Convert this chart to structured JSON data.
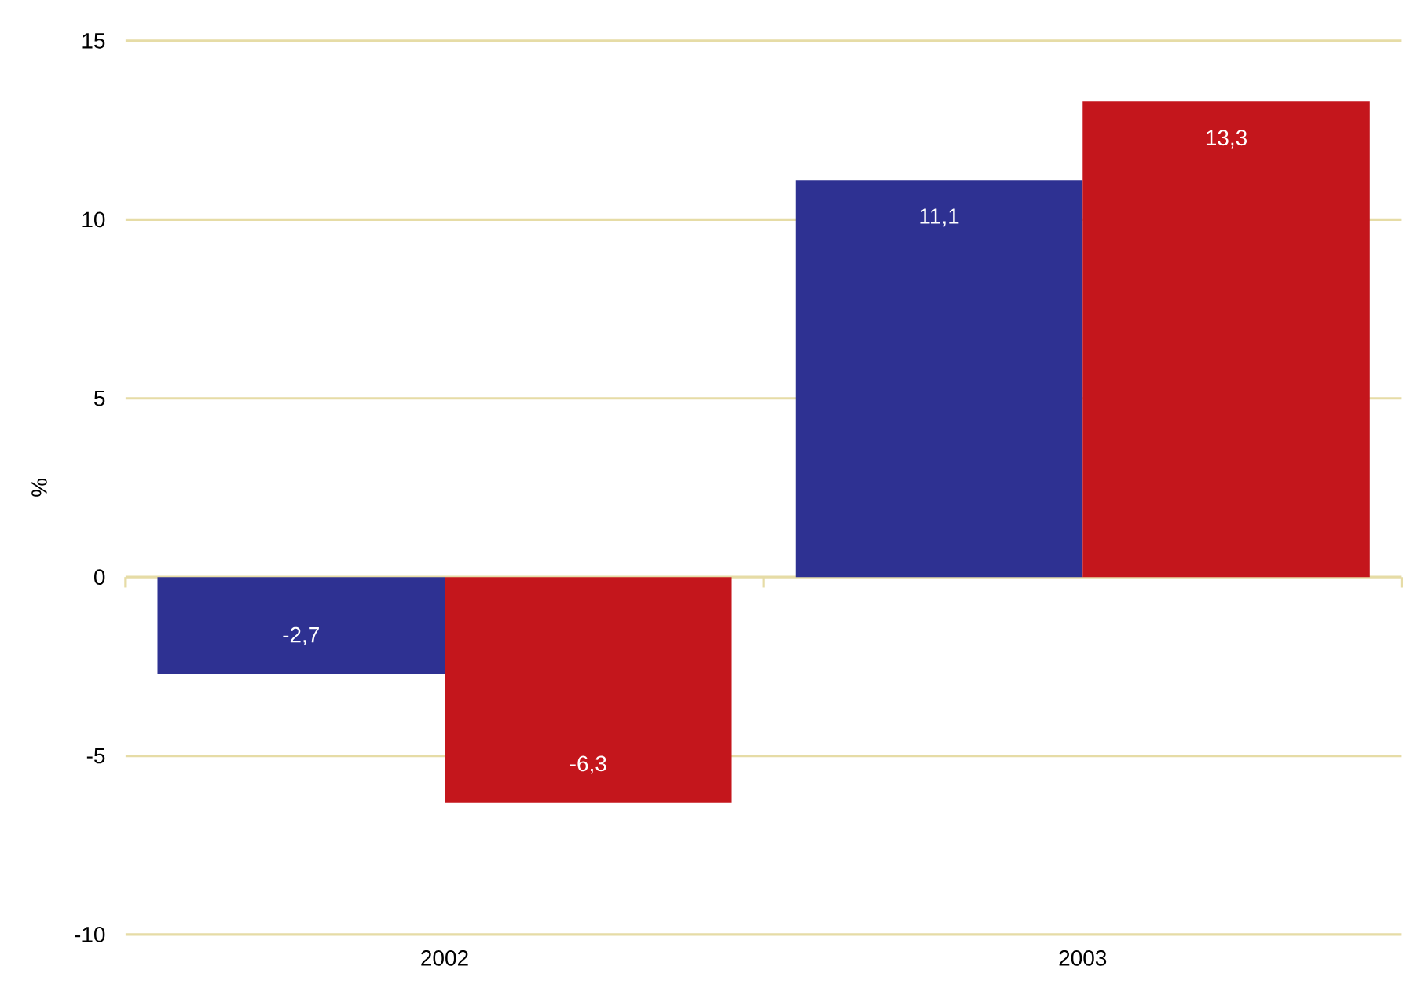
{
  "chart_data": {
    "type": "bar",
    "ylabel": "%",
    "categories": [
      "2002",
      "2003"
    ],
    "series": [
      {
        "color": "#2e3192",
        "values": [
          -2.7,
          11.1
        ],
        "value_labels": [
          "-2,7",
          "11,1"
        ]
      },
      {
        "color": "#c4161c",
        "values": [
          -6.3,
          13.3
        ],
        "value_labels": [
          "-6,3",
          "13,3"
        ]
      }
    ],
    "ylim": [
      -10,
      15
    ],
    "yticks": [
      -10,
      -5,
      0,
      5,
      10,
      15
    ],
    "grid": "y"
  }
}
